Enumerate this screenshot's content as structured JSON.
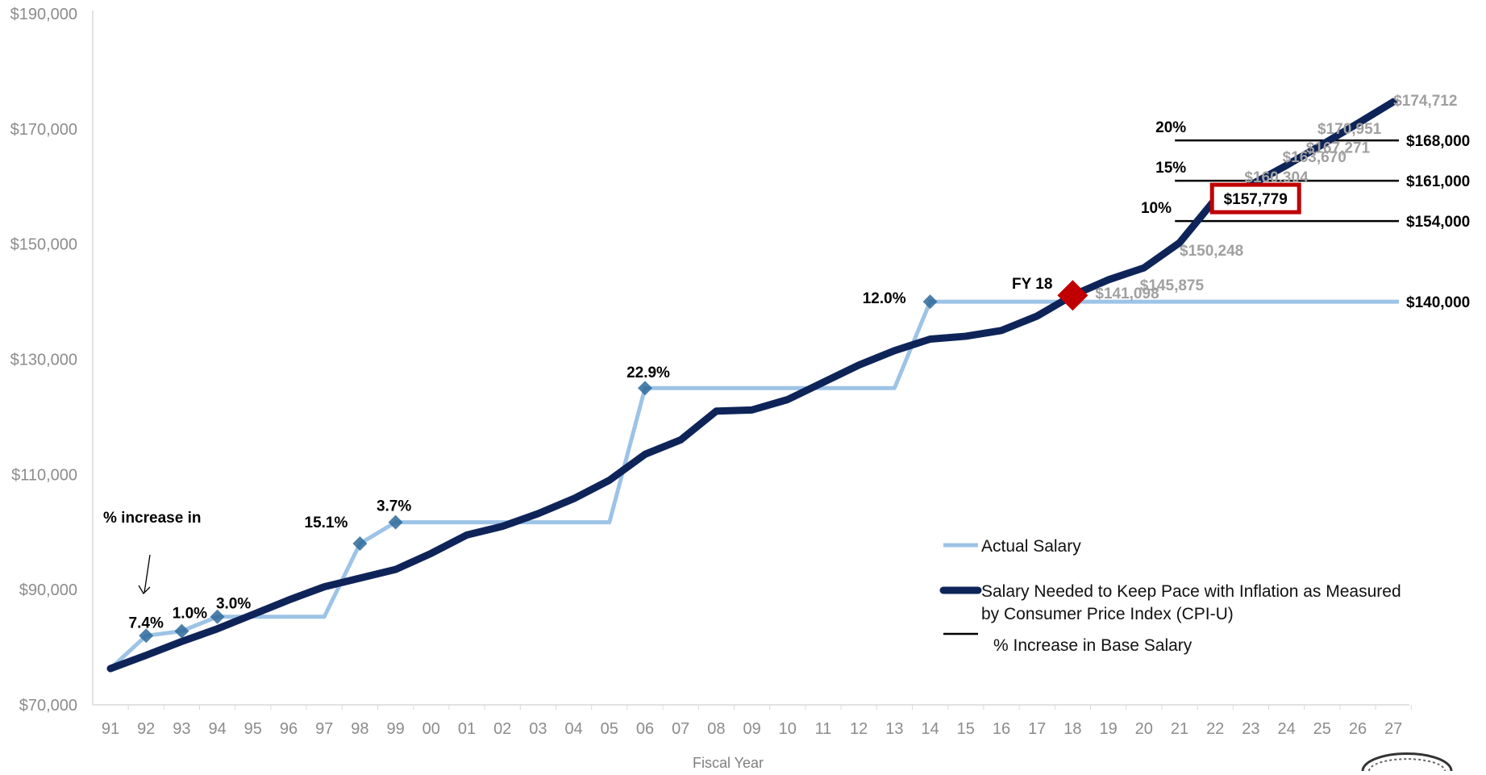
{
  "chart_data": {
    "type": "line",
    "xlabel": "Fiscal Year",
    "ylabel": "",
    "categories": [
      "91",
      "92",
      "93",
      "94",
      "95",
      "96",
      "97",
      "98",
      "99",
      "00",
      "01",
      "02",
      "03",
      "04",
      "05",
      "06",
      "07",
      "08",
      "09",
      "10",
      "11",
      "12",
      "13",
      "14",
      "15",
      "16",
      "17",
      "18",
      "19",
      "20",
      "21",
      "22",
      "23",
      "24",
      "25",
      "26",
      "27"
    ],
    "y_ticks": [
      "$70,000",
      "$90,000",
      "$110,000",
      "$130,000",
      "$150,000",
      "$170,000",
      "$190,000"
    ],
    "ylim": [
      70000,
      190000
    ],
    "grid": false,
    "legend_position": "bottom-right",
    "series": [
      {
        "name": "Actual Salary",
        "color": "#9dc3e6",
        "values": [
          76300,
          82000,
          82800,
          85300,
          85300,
          85300,
          85300,
          98000,
          101700,
          101700,
          101700,
          101700,
          101700,
          101700,
          101700,
          125000,
          125000,
          125000,
          125000,
          125000,
          125000,
          125000,
          125000,
          140000,
          140000,
          140000,
          140000,
          140000,
          140000,
          140000,
          140000,
          140000,
          140000,
          140000,
          140000,
          140000,
          140000
        ]
      },
      {
        "name": "Salary Needed to Keep Pace with Inflation as Measured by Consumer Price Index (CPI-U)",
        "color": "#0e2459",
        "values": [
          76300,
          78600,
          81000,
          83200,
          85700,
          88200,
          90500,
          92000,
          93500,
          96300,
          99500,
          101000,
          103200,
          105800,
          109000,
          113500,
          116000,
          121000,
          121200,
          123000,
          126000,
          129000,
          131500,
          133500,
          134000,
          135000,
          137500,
          141098,
          143800,
          145875,
          150248,
          157779,
          160304,
          163670,
          167271,
          170951,
          174712
        ]
      }
    ],
    "increase_markers": [
      {
        "year": "92",
        "label": "7.4%"
      },
      {
        "year": "93",
        "label": "1.0%"
      },
      {
        "year": "94",
        "label": "3.0%"
      },
      {
        "year": "98",
        "label": "15.1%"
      },
      {
        "year": "99",
        "label": "3.7%"
      },
      {
        "year": "06",
        "label": "22.9%"
      },
      {
        "year": "14",
        "label": "12.0%"
      }
    ],
    "value_labels": [
      {
        "year": "18",
        "label": "$141,098"
      },
      {
        "year": "20",
        "label": "$145,875"
      },
      {
        "year": "21",
        "label": "$150,248"
      },
      {
        "year": "23",
        "label": "$160,304"
      },
      {
        "year": "24",
        "label": "$163,670"
      },
      {
        "year": "25",
        "label": "$167,271"
      },
      {
        "year": "26",
        "label": "$170,951"
      },
      {
        "year": "27",
        "label": "$174,712"
      }
    ],
    "highlight": {
      "year": "22",
      "label": "$157,779"
    },
    "intersection": {
      "year": "18",
      "label": "FY 18"
    },
    "reference_lines": [
      {
        "pct": "20%",
        "value": 168000,
        "label": "$168,000"
      },
      {
        "pct": "15%",
        "value": 161000,
        "label": "$161,000"
      },
      {
        "pct": "10%",
        "value": 154000,
        "label": "$154,000"
      }
    ],
    "base_line_label": "$140,000",
    "annotation": "% increase in",
    "legend": {
      "actual": "Actual Salary",
      "cpi_line1": "Salary Needed to Keep Pace with Inflation as Measured",
      "cpi_line2": "by Consumer Price Index (CPI-U)",
      "ref": "% Increase in Base Salary"
    }
  }
}
